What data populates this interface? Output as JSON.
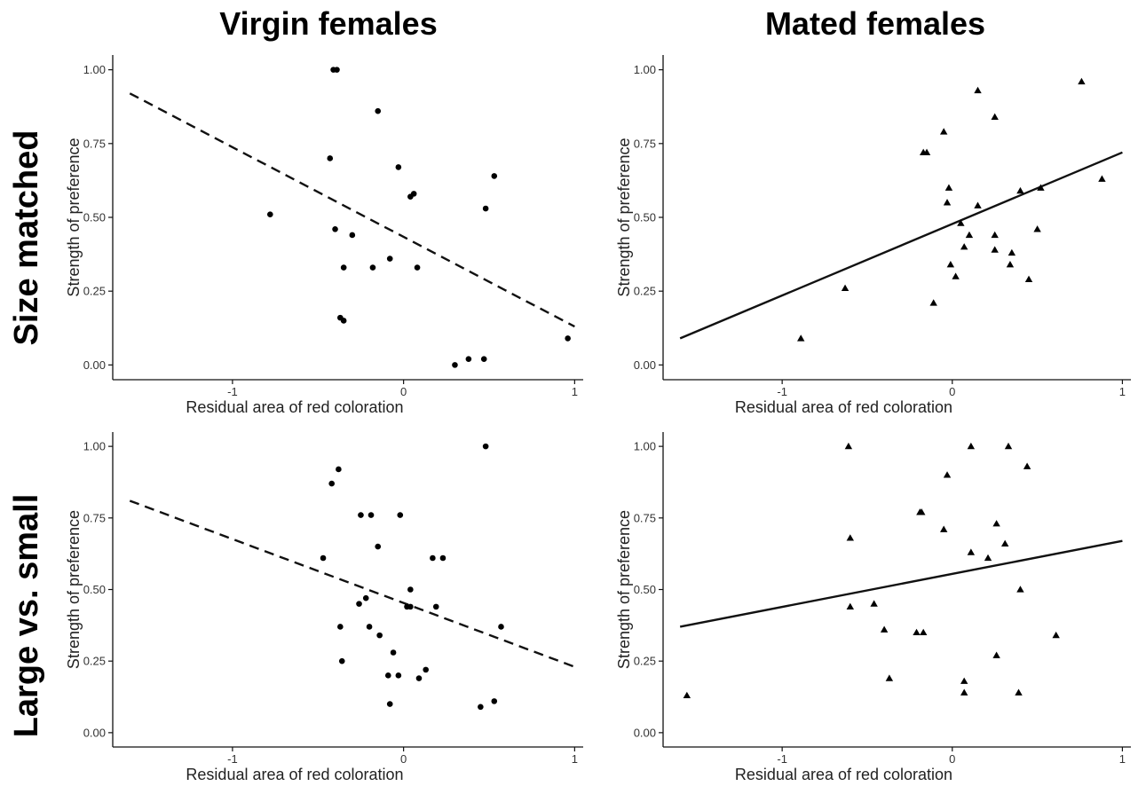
{
  "column_titles": [
    "Virgin females",
    "Mated females"
  ],
  "row_titles": [
    "Size matched",
    "Large vs. small"
  ],
  "chart_data": [
    {
      "type": "scatter",
      "title": "",
      "xlabel": "Residual area of red coloration",
      "ylabel": "Strength of preference",
      "xlim": [
        -1.7,
        1.05
      ],
      "ylim": [
        -0.05,
        1.05
      ],
      "xticks": [
        -1,
        0,
        1
      ],
      "xtick_labels": [
        "-1",
        "0",
        "1"
      ],
      "yticks": [
        0,
        0.25,
        0.5,
        0.75,
        1
      ],
      "ytick_labels": [
        "0.00",
        "0.25",
        "0.50",
        "0.75",
        "1.00"
      ],
      "grid": false,
      "marker": "circle",
      "fit_line": {
        "style": "dashed",
        "x": [
          -1.6,
          1.0
        ],
        "y": [
          0.92,
          0.13
        ]
      },
      "points": [
        {
          "x": -0.41,
          "y": 1.0
        },
        {
          "x": -0.39,
          "y": 1.0
        },
        {
          "x": -0.15,
          "y": 0.86
        },
        {
          "x": -0.43,
          "y": 0.7
        },
        {
          "x": -0.03,
          "y": 0.67
        },
        {
          "x": 0.04,
          "y": 0.57
        },
        {
          "x": 0.06,
          "y": 0.58
        },
        {
          "x": 0.53,
          "y": 0.64
        },
        {
          "x": 0.48,
          "y": 0.53
        },
        {
          "x": -0.78,
          "y": 0.51
        },
        {
          "x": -0.4,
          "y": 0.46
        },
        {
          "x": -0.3,
          "y": 0.44
        },
        {
          "x": -0.08,
          "y": 0.36
        },
        {
          "x": -0.35,
          "y": 0.33
        },
        {
          "x": -0.18,
          "y": 0.33
        },
        {
          "x": 0.08,
          "y": 0.33
        },
        {
          "x": -0.37,
          "y": 0.16
        },
        {
          "x": -0.35,
          "y": 0.15
        },
        {
          "x": 0.3,
          "y": 0.0
        },
        {
          "x": 0.38,
          "y": 0.02
        },
        {
          "x": 0.47,
          "y": 0.02
        },
        {
          "x": 0.96,
          "y": 0.09
        }
      ]
    },
    {
      "type": "scatter",
      "title": "",
      "xlabel": "Residual area of red coloration",
      "ylabel": "Strength of preference",
      "xlim": [
        -1.7,
        1.05
      ],
      "ylim": [
        -0.05,
        1.05
      ],
      "xticks": [
        -1,
        0,
        1
      ],
      "xtick_labels": [
        "-1",
        "0",
        "1"
      ],
      "yticks": [
        0,
        0.25,
        0.5,
        0.75,
        1
      ],
      "ytick_labels": [
        "0.00",
        "0.25",
        "0.50",
        "0.75",
        "1.00"
      ],
      "grid": false,
      "marker": "triangle",
      "fit_line": {
        "style": "solid",
        "x": [
          -1.6,
          1.0
        ],
        "y": [
          0.09,
          0.72
        ]
      },
      "points": [
        {
          "x": 0.76,
          "y": 0.96
        },
        {
          "x": 0.15,
          "y": 0.93
        },
        {
          "x": 0.25,
          "y": 0.84
        },
        {
          "x": -0.05,
          "y": 0.79
        },
        {
          "x": -0.17,
          "y": 0.72
        },
        {
          "x": -0.15,
          "y": 0.72
        },
        {
          "x": 0.88,
          "y": 0.63
        },
        {
          "x": -0.02,
          "y": 0.6
        },
        {
          "x": 0.52,
          "y": 0.6
        },
        {
          "x": 0.4,
          "y": 0.59
        },
        {
          "x": 0.15,
          "y": 0.54
        },
        {
          "x": -0.03,
          "y": 0.55
        },
        {
          "x": 0.05,
          "y": 0.48
        },
        {
          "x": 0.5,
          "y": 0.46
        },
        {
          "x": 0.1,
          "y": 0.44
        },
        {
          "x": 0.25,
          "y": 0.44
        },
        {
          "x": 0.07,
          "y": 0.4
        },
        {
          "x": 0.25,
          "y": 0.39
        },
        {
          "x": 0.35,
          "y": 0.38
        },
        {
          "x": -0.01,
          "y": 0.34
        },
        {
          "x": 0.34,
          "y": 0.34
        },
        {
          "x": 0.02,
          "y": 0.3
        },
        {
          "x": 0.45,
          "y": 0.29
        },
        {
          "x": -0.63,
          "y": 0.26
        },
        {
          "x": -0.11,
          "y": 0.21
        },
        {
          "x": -0.89,
          "y": 0.09
        }
      ]
    },
    {
      "type": "scatter",
      "title": "",
      "xlabel": "Residual area of red coloration",
      "ylabel": "Strength of preference",
      "xlim": [
        -1.7,
        1.05
      ],
      "ylim": [
        -0.05,
        1.05
      ],
      "xticks": [
        -1,
        0,
        1
      ],
      "xtick_labels": [
        "-1",
        "0",
        "1"
      ],
      "yticks": [
        0,
        0.25,
        0.5,
        0.75,
        1
      ],
      "ytick_labels": [
        "0.00",
        "0.25",
        "0.50",
        "0.75",
        "1.00"
      ],
      "grid": false,
      "marker": "circle",
      "fit_line": {
        "style": "dashed",
        "x": [
          -1.6,
          1.0
        ],
        "y": [
          0.81,
          0.23
        ]
      },
      "points": [
        {
          "x": 0.48,
          "y": 1.0
        },
        {
          "x": -0.38,
          "y": 0.92
        },
        {
          "x": -0.42,
          "y": 0.87
        },
        {
          "x": -0.25,
          "y": 0.76
        },
        {
          "x": -0.19,
          "y": 0.76
        },
        {
          "x": -0.02,
          "y": 0.76
        },
        {
          "x": -0.15,
          "y": 0.65
        },
        {
          "x": -0.47,
          "y": 0.61
        },
        {
          "x": 0.17,
          "y": 0.61
        },
        {
          "x": 0.23,
          "y": 0.61
        },
        {
          "x": 0.04,
          "y": 0.5
        },
        {
          "x": -0.22,
          "y": 0.47
        },
        {
          "x": -0.26,
          "y": 0.45
        },
        {
          "x": 0.02,
          "y": 0.44
        },
        {
          "x": 0.04,
          "y": 0.44
        },
        {
          "x": 0.19,
          "y": 0.44
        },
        {
          "x": -0.2,
          "y": 0.37
        },
        {
          "x": -0.37,
          "y": 0.37
        },
        {
          "x": 0.57,
          "y": 0.37
        },
        {
          "x": -0.14,
          "y": 0.34
        },
        {
          "x": -0.06,
          "y": 0.28
        },
        {
          "x": -0.36,
          "y": 0.25
        },
        {
          "x": 0.13,
          "y": 0.22
        },
        {
          "x": -0.09,
          "y": 0.2
        },
        {
          "x": -0.03,
          "y": 0.2
        },
        {
          "x": 0.09,
          "y": 0.19
        },
        {
          "x": -0.08,
          "y": 0.1
        },
        {
          "x": 0.53,
          "y": 0.11
        },
        {
          "x": 0.45,
          "y": 0.09
        }
      ]
    },
    {
      "type": "scatter",
      "title": "",
      "xlabel": "Residual area of red coloration",
      "ylabel": "Strength of preference",
      "xlim": [
        -1.7,
        1.05
      ],
      "ylim": [
        -0.05,
        1.05
      ],
      "xticks": [
        -1,
        0,
        1
      ],
      "xtick_labels": [
        "-1",
        "0",
        "1"
      ],
      "yticks": [
        0,
        0.25,
        0.5,
        0.75,
        1
      ],
      "ytick_labels": [
        "0.00",
        "0.25",
        "0.50",
        "0.75",
        "1.00"
      ],
      "grid": false,
      "marker": "triangle",
      "fit_line": {
        "style": "solid",
        "x": [
          -1.6,
          1.0
        ],
        "y": [
          0.37,
          0.67
        ]
      },
      "points": [
        {
          "x": -0.61,
          "y": 1.0
        },
        {
          "x": 0.11,
          "y": 1.0
        },
        {
          "x": 0.33,
          "y": 1.0
        },
        {
          "x": 0.44,
          "y": 0.93
        },
        {
          "x": -0.03,
          "y": 0.9
        },
        {
          "x": -0.19,
          "y": 0.77
        },
        {
          "x": -0.18,
          "y": 0.77
        },
        {
          "x": 0.26,
          "y": 0.73
        },
        {
          "x": -0.05,
          "y": 0.71
        },
        {
          "x": -0.6,
          "y": 0.68
        },
        {
          "x": 0.31,
          "y": 0.66
        },
        {
          "x": 0.11,
          "y": 0.63
        },
        {
          "x": 0.21,
          "y": 0.61
        },
        {
          "x": 0.4,
          "y": 0.5
        },
        {
          "x": -0.6,
          "y": 0.44
        },
        {
          "x": -0.46,
          "y": 0.45
        },
        {
          "x": -0.4,
          "y": 0.36
        },
        {
          "x": -0.21,
          "y": 0.35
        },
        {
          "x": -0.17,
          "y": 0.35
        },
        {
          "x": 0.61,
          "y": 0.34
        },
        {
          "x": 0.26,
          "y": 0.27
        },
        {
          "x": -0.37,
          "y": 0.19
        },
        {
          "x": 0.07,
          "y": 0.18
        },
        {
          "x": 0.07,
          "y": 0.14
        },
        {
          "x": 0.39,
          "y": 0.14
        },
        {
          "x": -1.56,
          "y": 0.13
        }
      ]
    }
  ]
}
